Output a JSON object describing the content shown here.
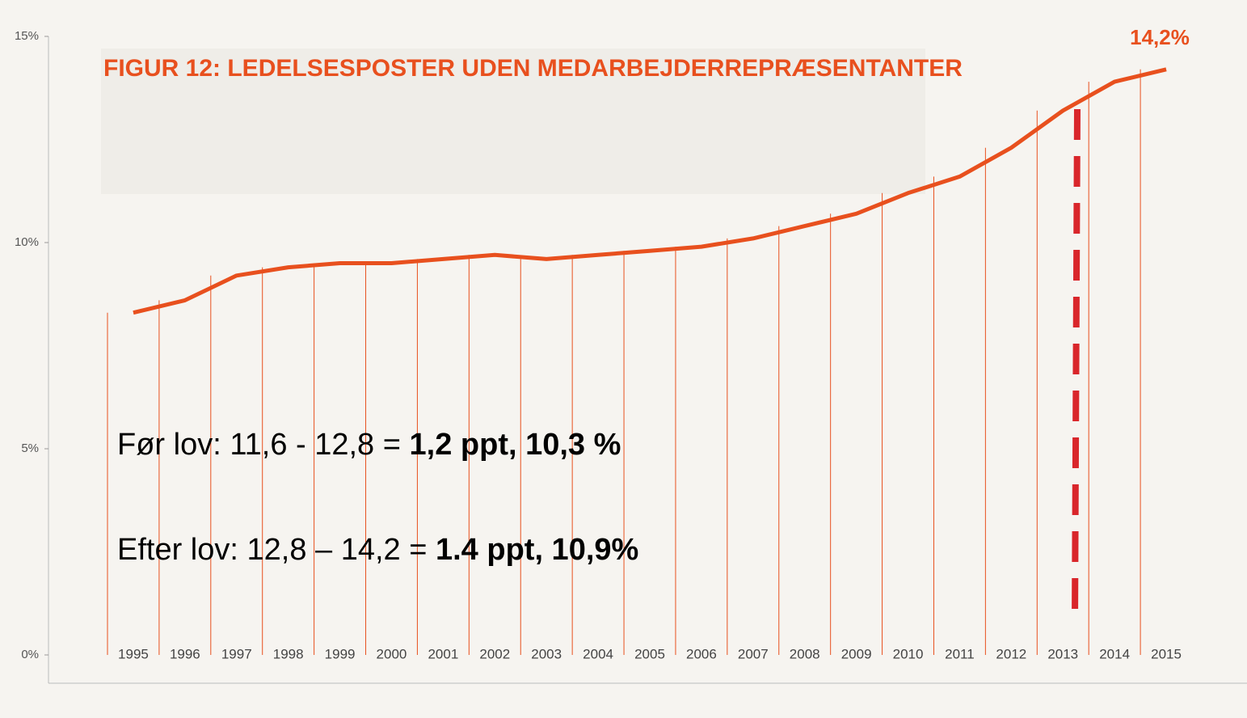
{
  "chart_data": {
    "type": "line",
    "title": "FIGUR 12: LEDELSESPOSTER UDEN MEDARBEJDERREPRÆSENTANTER",
    "categories": [
      "1995",
      "1996",
      "1997",
      "1998",
      "1999",
      "2000",
      "2001",
      "2002",
      "2003",
      "2004",
      "2005",
      "2006",
      "2007",
      "2008",
      "2009",
      "2010",
      "2011",
      "2012",
      "2013",
      "2014",
      "2015"
    ],
    "values": [
      8.3,
      8.6,
      9.2,
      9.4,
      9.5,
      9.5,
      9.6,
      9.7,
      9.6,
      9.7,
      9.8,
      9.9,
      10.1,
      10.4,
      10.7,
      11.2,
      11.6,
      12.3,
      13.2,
      13.9,
      14.2
    ],
    "color": "#e8501e",
    "ylim": [
      0,
      15
    ],
    "yticks": [
      {
        "value": 0,
        "label": "0%"
      },
      {
        "value": 5,
        "label": "5%"
      },
      {
        "value": 10,
        "label": "10%"
      },
      {
        "value": 15,
        "label": "15%"
      }
    ],
    "end_label": "14,2%",
    "annotations": [
      {
        "text": "Før lov: 11,6 - 12,8 = ",
        "bold": "1,2 ppt, 10,3 %"
      },
      {
        "text": "Efter lov: 12,8 – 14,2 = ",
        "bold": "1.4 ppt,  10,9%"
      }
    ]
  }
}
